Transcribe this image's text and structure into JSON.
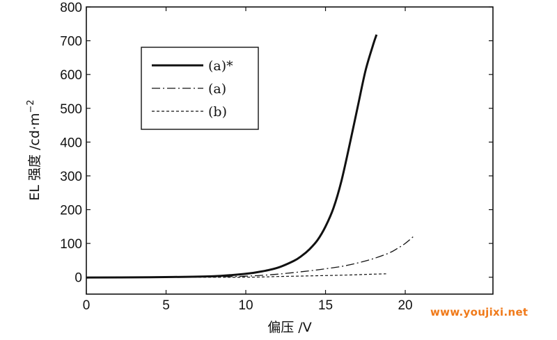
{
  "chart_data": {
    "type": "line",
    "title": "",
    "xlabel": "偏压 /V",
    "ylabel": "EL 强度 /cd·m",
    "ylabel_sup": "−2",
    "xlim": [
      0,
      25.5
    ],
    "ylim": [
      -50,
      800
    ],
    "xticks": [
      0,
      5,
      10,
      15,
      20
    ],
    "yticks": [
      0,
      100,
      200,
      300,
      400,
      500,
      600,
      700,
      800
    ],
    "grid": false,
    "legend_position": "top-left",
    "series": [
      {
        "name": "(a)*",
        "style": "solid",
        "x": [
          0,
          4,
          6,
          8,
          9,
          10,
          11,
          12,
          13,
          13.5,
          14,
          14.5,
          15,
          15.5,
          16,
          16.5,
          17,
          17.5,
          18,
          18.2
        ],
        "y": [
          -1,
          0,
          1,
          3,
          6,
          10,
          17,
          28,
          48,
          63,
          83,
          110,
          150,
          205,
          285,
          390,
          500,
          610,
          690,
          718
        ]
      },
      {
        "name": "(a)",
        "style": "dashdot",
        "x": [
          0,
          5,
          8,
          10,
          12,
          14,
          15,
          16,
          17,
          18,
          19,
          19.5,
          20,
          20.5
        ],
        "y": [
          -1,
          0,
          1,
          3,
          9,
          19,
          25,
          32,
          42,
          55,
          72,
          85,
          100,
          120
        ]
      },
      {
        "name": "(b)",
        "style": "dashed",
        "x": [
          0,
          5,
          10,
          12,
          14,
          16,
          18,
          18.8
        ],
        "y": [
          -1,
          0,
          0,
          2,
          4,
          6,
          9,
          10
        ]
      }
    ]
  },
  "watermark": "www.youjixi.net"
}
